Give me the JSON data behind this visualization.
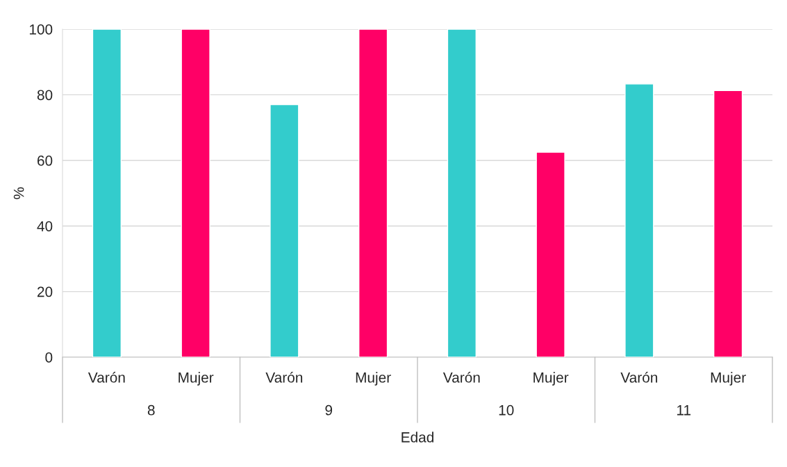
{
  "chart_data": {
    "type": "bar",
    "xlabel": "Edad",
    "ylabel": "%",
    "categories": [
      "8",
      "9",
      "10",
      "11"
    ],
    "series": [
      {
        "name": "Varón",
        "color": "#33cccc",
        "values": [
          100,
          77,
          100,
          83.3
        ]
      },
      {
        "name": "Mujer",
        "color": "#ff0066",
        "values": [
          100,
          100,
          62.5,
          81.3
        ]
      }
    ],
    "ylim": [
      0,
      100
    ],
    "yticks": [
      0,
      20,
      40,
      60,
      80,
      100
    ],
    "grid": "y",
    "legend": false
  }
}
